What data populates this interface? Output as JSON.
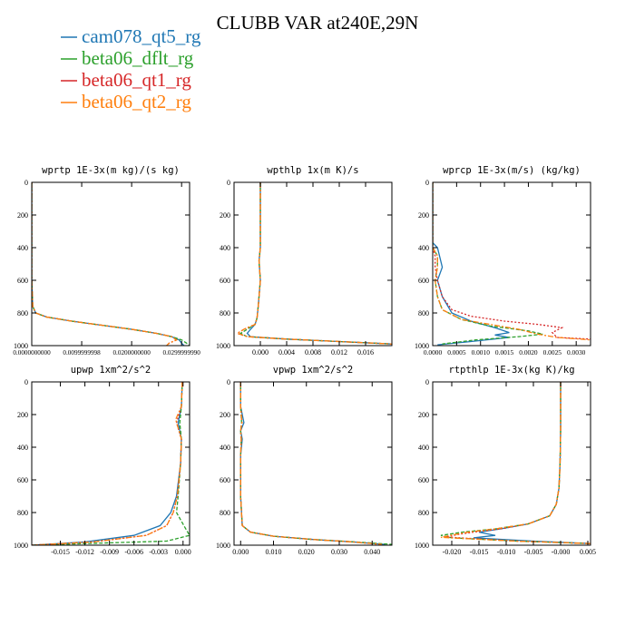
{
  "title": "CLUBB VAR at240E,29N",
  "legend": [
    {
      "name": "cam078_qt5_rg",
      "color": "#1f77b4"
    },
    {
      "name": "beta06_dflt_rg",
      "color": "#2ca02c"
    },
    {
      "name": "beta06_qt1_rg",
      "color": "#d62728"
    },
    {
      "name": "beta06_qt2_rg",
      "color": "#ff7f0e"
    }
  ],
  "chart_data": [
    {
      "type": "line",
      "title": "wprtp  1E-3x(m kg)/(s kg)",
      "xlim": [
        0,
        0.0316
      ],
      "ylim": [
        1000,
        0
      ],
      "xticks": [
        0,
        0.01,
        0.02,
        0.03
      ],
      "xtick_labels": [
        "0.0000000000",
        "0.0099999998",
        "0.0200000000",
        "0.0299999990"
      ],
      "yticks": [
        0,
        200,
        400,
        600,
        800,
        1000
      ],
      "series": [
        {
          "name": "cam078_qt5_rg",
          "x": [
            0,
            0,
            0.0002,
            0.0008,
            0.003,
            0.008,
            0.014,
            0.02,
            0.025,
            0.028,
            0.0295,
            0.03,
            0.0305
          ],
          "y": [
            0,
            600,
            760,
            800,
            825,
            850,
            875,
            900,
            925,
            945,
            965,
            985,
            1000
          ]
        },
        {
          "name": "beta06_dflt_rg",
          "x": [
            0,
            0,
            0.0002,
            0.0008,
            0.003,
            0.008,
            0.014,
            0.02,
            0.025,
            0.028,
            0.03,
            0.031,
            0.0315
          ],
          "y": [
            0,
            600,
            760,
            800,
            825,
            850,
            875,
            900,
            925,
            945,
            965,
            985,
            1000
          ]
        },
        {
          "name": "beta06_qt1_rg",
          "x": [
            0,
            0,
            0.0002,
            0.0008,
            0.003,
            0.008,
            0.014,
            0.02,
            0.025,
            0.028,
            0.029,
            0.0275,
            0.027
          ],
          "y": [
            0,
            600,
            760,
            800,
            825,
            850,
            875,
            900,
            925,
            945,
            965,
            985,
            1000
          ]
        },
        {
          "name": "beta06_qt2_rg",
          "x": [
            0,
            0,
            0.0002,
            0.0008,
            0.003,
            0.008,
            0.014,
            0.02,
            0.025,
            0.028,
            0.029,
            0.0275,
            0.027
          ],
          "y": [
            0,
            600,
            760,
            800,
            825,
            850,
            875,
            900,
            925,
            945,
            965,
            985,
            1000
          ]
        }
      ]
    },
    {
      "type": "line",
      "title": "wpthlp  1x(m K)/s",
      "xlim": [
        -0.004,
        0.02
      ],
      "ylim": [
        1000,
        0
      ],
      "xticks": [
        0,
        0.004,
        0.008,
        0.012,
        0.016
      ],
      "xtick_labels": [
        "0.000",
        "0.004",
        "0.008",
        "0.012",
        "0.016"
      ],
      "yticks": [
        0,
        200,
        400,
        600,
        800,
        1000
      ],
      "series": [
        {
          "name": "cam078_qt5_rg",
          "x": [
            0,
            0,
            0,
            -0.0002,
            0,
            -0.0003,
            -0.0005,
            -0.0008,
            -0.0015,
            -0.002,
            -0.0015,
            0.004,
            0.012,
            0.02
          ],
          "y": [
            0,
            200,
            400,
            480,
            600,
            750,
            830,
            870,
            900,
            925,
            945,
            960,
            975,
            990
          ]
        },
        {
          "name": "beta06_dflt_rg",
          "x": [
            0,
            0,
            0,
            -0.0002,
            0,
            -0.0003,
            -0.0005,
            -0.0008,
            -0.002,
            -0.003,
            -0.002,
            0.004,
            0.012,
            0.02
          ],
          "y": [
            0,
            200,
            400,
            480,
            600,
            750,
            830,
            870,
            900,
            925,
            945,
            960,
            975,
            990
          ]
        },
        {
          "name": "beta06_qt1_rg",
          "x": [
            0,
            0,
            0,
            -0.0002,
            0,
            -0.0003,
            -0.0005,
            -0.0008,
            -0.0025,
            -0.0035,
            -0.002,
            0.004,
            0.012,
            0.02
          ],
          "y": [
            0,
            200,
            400,
            480,
            600,
            750,
            830,
            870,
            900,
            925,
            945,
            960,
            975,
            990
          ]
        },
        {
          "name": "beta06_qt2_rg",
          "x": [
            0,
            0,
            0,
            -0.0002,
            0,
            -0.0003,
            -0.0005,
            -0.0008,
            -0.0025,
            -0.0035,
            -0.002,
            0.004,
            0.012,
            0.02
          ],
          "y": [
            0,
            200,
            400,
            480,
            600,
            750,
            830,
            870,
            900,
            925,
            945,
            960,
            975,
            990
          ]
        }
      ]
    },
    {
      "type": "line",
      "title": "wprcp  1E-3x(m/s) (kg/kg)",
      "xlim": [
        0,
        0.0033
      ],
      "ylim": [
        1000,
        0
      ],
      "xticks": [
        0,
        0.0005,
        0.001,
        0.0015,
        0.002,
        0.0025,
        0.003
      ],
      "xtick_labels": [
        "0.0000",
        "0.0005",
        "0.0010",
        "0.0015",
        "0.0020",
        "0.0025",
        "0.0030"
      ],
      "yticks": [
        0,
        200,
        400,
        600,
        800,
        1000
      ],
      "series": [
        {
          "name": "cam078_qt5_rg",
          "x": [
            0,
            0,
            0.0001,
            0.0002,
            0.0001,
            0.0002,
            0.0004,
            0.0008,
            0.0013,
            0.0016,
            0.0013,
            0.0016,
            0.0008,
            0.0001
          ],
          "y": [
            0,
            370,
            400,
            520,
            600,
            700,
            800,
            850,
            890,
            920,
            935,
            950,
            975,
            995
          ]
        },
        {
          "name": "beta06_dflt_rg",
          "x": [
            0,
            0,
            0.0001,
            0.0001,
            5e-05,
            0.0001,
            0.0002,
            0.0006,
            0.0012,
            0.002,
            0.0023,
            0.0018,
            0.0009,
            0.0002
          ],
          "y": [
            0,
            400,
            450,
            520,
            600,
            700,
            780,
            840,
            880,
            910,
            930,
            945,
            965,
            990
          ]
        },
        {
          "name": "beta06_qt1_rg",
          "x": [
            0,
            0,
            5e-05,
            5e-05,
            0.0001,
            0.0002,
            0.0004,
            0.0008,
            0.0015,
            0.0022,
            0.0027,
            0.0025,
            0.0026,
            0.0033
          ],
          "y": [
            0,
            400,
            450,
            520,
            600,
            700,
            780,
            820,
            850,
            870,
            890,
            920,
            950,
            960
          ]
        },
        {
          "name": "beta06_qt2_rg",
          "x": [
            0,
            0,
            0.0001,
            0.0001,
            5e-05,
            0.0001,
            0.0002,
            0.0006,
            0.0012,
            0.0018,
            0.0022,
            0.0026,
            0.0031,
            0.0033
          ],
          "y": [
            0,
            400,
            450,
            520,
            600,
            700,
            780,
            840,
            870,
            900,
            930,
            950,
            960,
            965
          ]
        }
      ]
    },
    {
      "type": "line",
      "title": "upwp  1xm^2/s^2",
      "xlim": [
        -0.0185,
        0.0008
      ],
      "ylim": [
        1000,
        0
      ],
      "xticks": [
        -0.015,
        -0.012,
        -0.009,
        -0.006,
        -0.003,
        0
      ],
      "xtick_labels": [
        "-0.015",
        "-0.012",
        "-0.009",
        "-0.006",
        "-0.003",
        "0.000"
      ],
      "yticks": [
        0,
        200,
        400,
        600,
        800,
        1000
      ],
      "series": [
        {
          "name": "cam078_qt5_rg",
          "x": [
            -0.0001,
            -0.0002,
            -0.0006,
            -0.0002,
            -0.0003,
            -0.0008,
            -0.0015,
            -0.0028,
            -0.006,
            -0.012,
            -0.0185
          ],
          "y": [
            0,
            150,
            250,
            350,
            500,
            700,
            800,
            880,
            940,
            980,
            1000
          ]
        },
        {
          "name": "beta06_dflt_rg",
          "x": [
            -0.0001,
            -0.0002,
            -0.0004,
            -0.0002,
            -0.0003,
            -0.0006,
            -0.0008,
            0.0001,
            0.0008,
            -0.002,
            -0.0185
          ],
          "y": [
            0,
            150,
            250,
            350,
            500,
            700,
            800,
            880,
            940,
            975,
            1000
          ]
        },
        {
          "name": "beta06_qt1_rg",
          "x": [
            -0.0001,
            -0.0002,
            -0.0008,
            -0.0002,
            -0.0003,
            -0.0007,
            -0.0012,
            -0.002,
            -0.0045,
            -0.011,
            -0.0185
          ],
          "y": [
            0,
            150,
            250,
            350,
            500,
            700,
            800,
            880,
            940,
            980,
            1000
          ]
        },
        {
          "name": "beta06_qt2_rg",
          "x": [
            -0.0001,
            -0.0002,
            -0.0009,
            -0.0002,
            -0.0003,
            -0.0007,
            -0.0012,
            -0.002,
            -0.0045,
            -0.011,
            -0.0185
          ],
          "y": [
            0,
            150,
            230,
            350,
            500,
            700,
            800,
            880,
            940,
            980,
            1000
          ]
        }
      ]
    },
    {
      "type": "line",
      "title": "vpwp  1xm^2/s^2",
      "xlim": [
        -0.002,
        0.046
      ],
      "ylim": [
        1000,
        0
      ],
      "xticks": [
        0,
        0.01,
        0.02,
        0.03,
        0.04
      ],
      "xtick_labels": [
        "0.000",
        "0.010",
        "0.020",
        "0.030",
        "0.040"
      ],
      "yticks": [
        0,
        200,
        400,
        600,
        800,
        1000
      ],
      "series": [
        {
          "name": "cam078_qt5_rg",
          "x": [
            0,
            0,
            0.001,
            0,
            0.0005,
            0,
            0,
            0.0005,
            0.003,
            0.01,
            0.022,
            0.034,
            0.044
          ],
          "y": [
            0,
            150,
            250,
            300,
            350,
            450,
            700,
            880,
            920,
            945,
            965,
            980,
            995
          ]
        },
        {
          "name": "beta06_dflt_rg",
          "x": [
            0,
            0,
            0.0003,
            0,
            0.0002,
            0,
            0,
            0.0005,
            0.003,
            0.01,
            0.022,
            0.035,
            0.046
          ],
          "y": [
            0,
            150,
            250,
            300,
            350,
            450,
            700,
            880,
            920,
            945,
            965,
            980,
            995
          ]
        },
        {
          "name": "beta06_qt1_rg",
          "x": [
            0,
            0,
            0.0004,
            0,
            0.0002,
            0,
            0,
            0.0005,
            0.003,
            0.01,
            0.022,
            0.034,
            0.043
          ],
          "y": [
            0,
            150,
            250,
            300,
            350,
            450,
            700,
            880,
            920,
            945,
            965,
            980,
            995
          ]
        },
        {
          "name": "beta06_qt2_rg",
          "x": [
            0,
            0,
            0.0004,
            0,
            0.0002,
            0,
            0,
            0.0005,
            0.003,
            0.01,
            0.022,
            0.034,
            0.043
          ],
          "y": [
            0,
            150,
            250,
            300,
            350,
            450,
            700,
            880,
            920,
            945,
            965,
            980,
            995
          ]
        }
      ]
    },
    {
      "type": "line",
      "title": "rtpthlp  1E-3x(kg K)/kg",
      "xlim": [
        -0.0235,
        0.0055
      ],
      "ylim": [
        1000,
        0
      ],
      "xticks": [
        -0.02,
        -0.015,
        -0.01,
        -0.005,
        0,
        0.005
      ],
      "xtick_labels": [
        "-0.020",
        "-0.015",
        "-0.010",
        "-0.005",
        "-0.000",
        "0.005"
      ],
      "yticks": [
        0,
        200,
        400,
        600,
        800,
        1000
      ],
      "series": [
        {
          "name": "cam078_qt5_rg",
          "x": [
            0,
            0,
            -0.0001,
            -0.0003,
            -0.0008,
            -0.002,
            -0.006,
            -0.011,
            -0.015,
            -0.012,
            -0.016,
            -0.005,
            0.0055
          ],
          "y": [
            0,
            300,
            500,
            650,
            750,
            820,
            870,
            900,
            920,
            940,
            955,
            975,
            990
          ]
        },
        {
          "name": "beta06_dflt_rg",
          "x": [
            0,
            0,
            -0.0001,
            -0.0003,
            -0.0008,
            -0.002,
            -0.006,
            -0.012,
            -0.018,
            -0.022,
            -0.02,
            -0.008,
            0.0055
          ],
          "y": [
            0,
            300,
            500,
            650,
            750,
            820,
            870,
            900,
            920,
            940,
            955,
            975,
            990
          ]
        },
        {
          "name": "beta06_qt1_rg",
          "x": [
            0,
            0,
            -0.0001,
            -0.0003,
            -0.0008,
            -0.002,
            -0.006,
            -0.011,
            -0.016,
            -0.019,
            -0.021,
            -0.008,
            0.0055
          ],
          "y": [
            0,
            300,
            500,
            650,
            750,
            820,
            870,
            900,
            920,
            935,
            950,
            975,
            990
          ]
        },
        {
          "name": "beta06_qt2_rg",
          "x": [
            0,
            0,
            -0.0001,
            -0.0003,
            -0.0008,
            -0.002,
            -0.006,
            -0.012,
            -0.017,
            -0.02,
            -0.022,
            -0.008,
            0.0055
          ],
          "y": [
            0,
            300,
            500,
            650,
            750,
            820,
            870,
            900,
            920,
            938,
            952,
            975,
            990
          ]
        }
      ]
    }
  ]
}
